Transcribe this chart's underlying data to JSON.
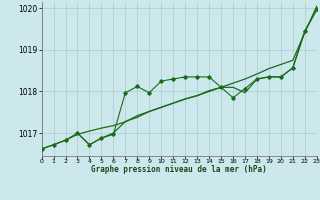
{
  "title": "Graphe pression niveau de la mer (hPa)",
  "bg_color": "#cce8ed",
  "grid_color": "#aacccc",
  "line_color": "#1a6b1a",
  "xlim": [
    0,
    23
  ],
  "ylim": [
    1016.45,
    1020.15
  ],
  "yticks": [
    1017,
    1018,
    1019,
    1020
  ],
  "xticks": [
    0,
    1,
    2,
    3,
    4,
    5,
    6,
    7,
    8,
    9,
    10,
    11,
    12,
    13,
    14,
    15,
    16,
    17,
    18,
    19,
    20,
    21,
    22,
    23
  ],
  "series1_x": [
    0,
    1,
    2,
    3,
    4,
    5,
    6,
    7,
    8,
    9,
    10,
    11,
    12,
    13,
    14,
    15,
    16,
    17,
    18,
    19,
    20,
    21,
    22,
    23
  ],
  "series1_y": [
    1016.62,
    1016.72,
    1016.83,
    1016.97,
    1017.05,
    1017.12,
    1017.18,
    1017.27,
    1017.42,
    1017.52,
    1017.62,
    1017.72,
    1017.82,
    1017.9,
    1018.0,
    1018.1,
    1018.2,
    1018.3,
    1018.42,
    1018.55,
    1018.65,
    1018.75,
    1019.42,
    1020.05
  ],
  "series2_x": [
    0,
    1,
    2,
    3,
    4,
    5,
    6,
    7,
    8,
    9,
    10,
    11,
    12,
    13,
    14,
    15,
    16,
    17,
    18,
    19,
    20,
    21,
    22,
    23
  ],
  "series2_y": [
    1016.62,
    1016.72,
    1016.83,
    1017.0,
    1016.72,
    1016.88,
    1016.97,
    1017.97,
    1018.12,
    1017.97,
    1018.25,
    1018.3,
    1018.35,
    1018.35,
    1018.35,
    1018.1,
    1017.85,
    1018.07,
    1018.3,
    1018.35,
    1018.35,
    1018.57,
    1019.45,
    1019.97
  ],
  "series3_x": [
    3,
    4,
    5,
    6,
    7,
    8,
    9,
    10,
    11,
    12,
    13,
    14,
    15,
    16,
    17,
    18,
    19,
    20,
    21,
    22,
    23
  ],
  "series3_y": [
    1017.0,
    1016.72,
    1016.88,
    1017.0,
    1017.28,
    1017.38,
    1017.52,
    1017.62,
    1017.72,
    1017.82,
    1017.9,
    1018.02,
    1018.1,
    1018.1,
    1017.97,
    1018.3,
    1018.35,
    1018.35,
    1018.57,
    1019.45,
    1019.97
  ]
}
